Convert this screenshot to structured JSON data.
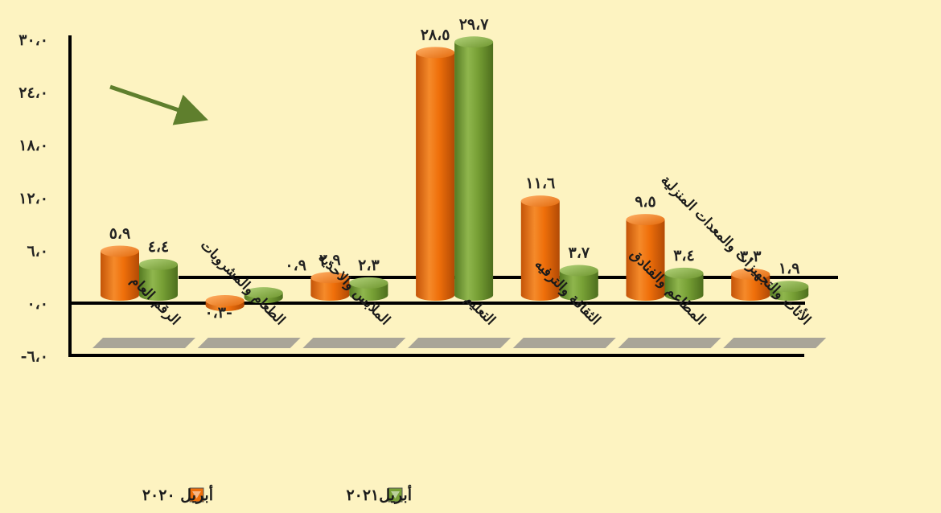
{
  "chart_data": {
    "type": "bar",
    "title": "",
    "xlabel": "",
    "ylabel": "",
    "ylim": [
      -6,
      30
    ],
    "yticks": [
      -6,
      0,
      6,
      12,
      18,
      24,
      30
    ],
    "ytick_labels": [
      "-٦،٠",
      "٠،٠",
      "٦،٠",
      "١٢،٠",
      "١٨،٠",
      "٢٤،٠",
      "٣٠،٠"
    ],
    "categories": [
      "الرقم العام",
      "الطعام والمشروبات",
      "الملابس والاحذية",
      "التعليم",
      "الثقافة والترفيه",
      "المطاعم والفنادق",
      "الأثاث والتجهيزات والمعدات المنزلية"
    ],
    "series": [
      {
        "name": "أبريل ٢٠٢٠",
        "color": "#ef6f0a",
        "values": [
          5.9,
          -0.3,
          2.9,
          28.5,
          11.6,
          9.5,
          3.3
        ],
        "labels": [
          "٥،٩",
          "٠،٣-",
          "٢،٩",
          "٢٨،٥",
          "١١،٦",
          "٩،٥",
          "٣،٣"
        ]
      },
      {
        "name": "أبريل٢٠٢١",
        "color": "#77a035",
        "values": [
          4.4,
          0.9,
          2.3,
          29.7,
          3.7,
          3.4,
          1.9
        ],
        "labels": [
          "٤،٤",
          "٠،٩",
          "٢،٣",
          "٢٩،٧",
          "٣،٧",
          "٣،٤",
          "١،٩"
        ]
      }
    ],
    "grid": false,
    "legend_position": "bottom",
    "annotation": "trend arrow pointing down-right"
  }
}
